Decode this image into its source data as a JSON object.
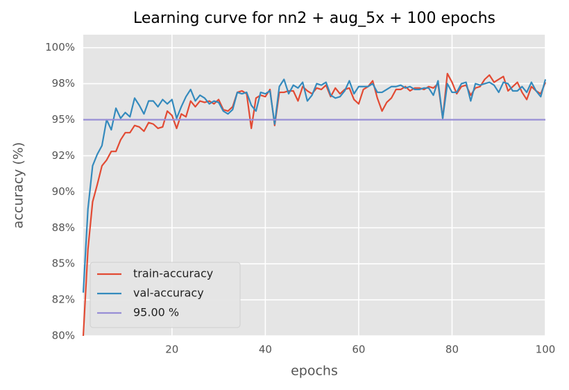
{
  "chart_data": {
    "type": "line",
    "title": "Learning curve for nn2 + aug_5x + 100 epochs",
    "xlabel": "epochs",
    "ylabel": "accuracy (%)",
    "x": [
      1,
      2,
      3,
      4,
      5,
      6,
      7,
      8,
      9,
      10,
      11,
      12,
      13,
      14,
      15,
      16,
      17,
      18,
      19,
      20,
      21,
      22,
      23,
      24,
      25,
      26,
      27,
      28,
      29,
      30,
      31,
      32,
      33,
      34,
      35,
      36,
      37,
      38,
      39,
      40,
      41,
      42,
      43,
      44,
      45,
      46,
      47,
      48,
      49,
      50,
      51,
      52,
      53,
      54,
      55,
      56,
      57,
      58,
      59,
      60,
      61,
      62,
      63,
      64,
      65,
      66,
      67,
      68,
      69,
      70,
      71,
      72,
      73,
      74,
      75,
      76,
      77,
      78,
      79,
      80,
      81,
      82,
      83,
      84,
      85,
      86,
      87,
      88,
      89,
      90,
      91,
      92,
      93,
      94,
      95,
      96,
      97,
      98,
      99,
      100
    ],
    "series": [
      {
        "name": "train-accuracy",
        "color": "#e24a33",
        "values": [
          80,
          86,
          89.3,
          90.5,
          91.8,
          92.2,
          92.8,
          92.8,
          93.6,
          94.1,
          94.1,
          94.6,
          94.5,
          94.2,
          94.8,
          94.7,
          94.4,
          94.5,
          95.6,
          95.3,
          94.4,
          95.4,
          95.2,
          96.3,
          95.9,
          96.3,
          96.2,
          96.3,
          96.1,
          96.4,
          95.7,
          95.6,
          95.9,
          96.9,
          97.0,
          96.8,
          94.4,
          96.5,
          96.7,
          96.6,
          97.1,
          94.6,
          96.9,
          96.9,
          97.0,
          97.0,
          96.3,
          97.3,
          97.0,
          96.8,
          97.2,
          97.1,
          97.4,
          96.6,
          97.2,
          96.8,
          97.1,
          97.2,
          96.4,
          96.1,
          97.1,
          97.3,
          97.7,
          96.5,
          95.6,
          96.2,
          96.5,
          97.1,
          97.1,
          97.3,
          97.0,
          97.2,
          97.2,
          97.1,
          97.3,
          97.2,
          97.5,
          95.1,
          98.2,
          97.6,
          96.8,
          97.3,
          97.4,
          96.7,
          97.2,
          97.3,
          97.8,
          98.1,
          97.6,
          97.8,
          98.0,
          97.0,
          97.3,
          97.6,
          96.9,
          96.4,
          97.3,
          97.0,
          96.8,
          97.6
        ]
      },
      {
        "name": "val-accuracy",
        "color": "#348abd",
        "values": [
          83,
          88.8,
          91.8,
          92.6,
          93.2,
          95.0,
          94.3,
          95.8,
          95.1,
          95.5,
          95.2,
          96.5,
          96.0,
          95.4,
          96.3,
          96.3,
          95.9,
          96.4,
          96.1,
          96.4,
          95.1,
          95.9,
          96.6,
          97.1,
          96.3,
          96.7,
          96.5,
          96.1,
          96.3,
          96.2,
          95.6,
          95.4,
          95.7,
          96.9,
          96.8,
          96.9,
          96.0,
          95.6,
          96.9,
          96.8,
          97.0,
          94.7,
          97.3,
          97.8,
          96.8,
          97.4,
          97.2,
          97.6,
          96.3,
          96.7,
          97.5,
          97.4,
          97.6,
          96.7,
          96.5,
          96.6,
          97.0,
          97.7,
          96.8,
          97.3,
          97.3,
          97.3,
          97.5,
          96.9,
          96.9,
          97.1,
          97.3,
          97.3,
          97.4,
          97.2,
          97.3,
          97.1,
          97.1,
          97.2,
          97.2,
          96.7,
          97.7,
          95.1,
          97.5,
          96.9,
          96.9,
          97.5,
          97.6,
          96.3,
          97.5,
          97.4,
          97.5,
          97.6,
          97.4,
          96.9,
          97.6,
          97.5,
          97.0,
          97.0,
          97.3,
          96.9,
          97.6,
          97.0,
          96.6,
          97.8
        ]
      }
    ],
    "hlines": [
      {
        "name": "95.00 %",
        "value": 95,
        "color": "#988ed5"
      }
    ],
    "xlim": [
      1,
      100
    ],
    "xticks": [
      20,
      40,
      60,
      80,
      100
    ],
    "ylim": [
      80,
      100.9
    ],
    "yticks": [
      {
        "value": 80,
        "label": "80%"
      },
      {
        "value": 82.5,
        "label": "82%"
      },
      {
        "value": 85,
        "label": "85%"
      },
      {
        "value": 87.5,
        "label": "88%"
      },
      {
        "value": 90,
        "label": "90%"
      },
      {
        "value": 92.5,
        "label": "92%"
      },
      {
        "value": 95,
        "label": "95%"
      },
      {
        "value": 97.5,
        "label": "98%"
      },
      {
        "value": 100,
        "label": "100%"
      }
    ],
    "grid": true,
    "legend": "lower left"
  }
}
